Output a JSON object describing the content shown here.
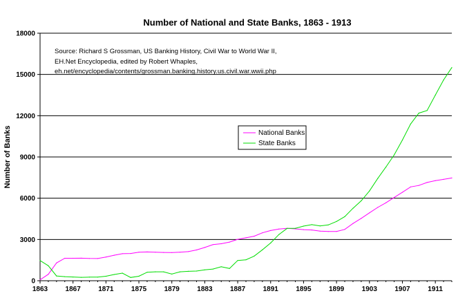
{
  "chart_data": {
    "type": "line",
    "title": "Number of National and State Banks, 1863 - 1913",
    "xlabel": "",
    "ylabel": "Number of Banks",
    "xlim": [
      1863,
      1913
    ],
    "ylim": [
      0,
      18000
    ],
    "x_ticks": [
      "1863",
      "1867",
      "1871",
      "1875",
      "1879",
      "1883",
      "1887",
      "1891",
      "1895",
      "1899",
      "1903",
      "1907",
      "1911"
    ],
    "y_ticks": [
      "0",
      "3000",
      "6000",
      "9000",
      "12000",
      "15000",
      "18000"
    ],
    "grid": "horizontal",
    "legend_position": "center",
    "source_lines": [
      "Source: Richard S Grossman, US Banking History, Civil War to World War II,",
      "EH.Net Encyclopedia, edited by Robert Whaples,",
      "eh.net/encyclopedia/contents/grossman.banking.history.us.civil.war.wwii.php"
    ],
    "x": [
      1863,
      1864,
      1865,
      1866,
      1867,
      1868,
      1869,
      1870,
      1871,
      1872,
      1873,
      1874,
      1875,
      1876,
      1877,
      1878,
      1879,
      1880,
      1881,
      1882,
      1883,
      1884,
      1885,
      1886,
      1887,
      1888,
      1889,
      1890,
      1891,
      1892,
      1893,
      1894,
      1895,
      1896,
      1897,
      1898,
      1899,
      1900,
      1901,
      1902,
      1903,
      1904,
      1905,
      1906,
      1907,
      1908,
      1909,
      1910,
      1911,
      1912,
      1913
    ],
    "series": [
      {
        "name": "National Banks",
        "color": "#ff00ff",
        "values": [
          66,
          467,
          1294,
          1634,
          1636,
          1640,
          1619,
          1612,
          1723,
          1853,
          1968,
          1983,
          2076,
          2091,
          2078,
          2056,
          2048,
          2076,
          2115,
          2239,
          2417,
          2625,
          2689,
          2809,
          3014,
          3120,
          3239,
          3484,
          3652,
          3759,
          3807,
          3770,
          3715,
          3689,
          3610,
          3582,
          3583,
          3731,
          4163,
          4535,
          4939,
          5331,
          5668,
          6053,
          6429,
          6824,
          6926,
          7145,
          7277,
          7372,
          7473
        ]
      },
      {
        "name": "State Banks",
        "color": "#00dd00",
        "values": [
          1466,
          1089,
          349,
          297,
          272,
          247,
          259,
          261,
          325,
          452,
          551,
          235,
          325,
          620,
          650,
          650,
          489,
          650,
          683,
          704,
          788,
          852,
          1015,
          891,
          1471,
          1523,
          1791,
          2250,
          2743,
          3359,
          3807,
          3810,
          3974,
          4076,
          3987,
          4058,
          4307,
          4659,
          5267,
          5814,
          6526,
          7430,
          8266,
          9152,
          10234,
          11399,
          12188,
          12381,
          13500,
          14600,
          15500
        ]
      }
    ]
  }
}
